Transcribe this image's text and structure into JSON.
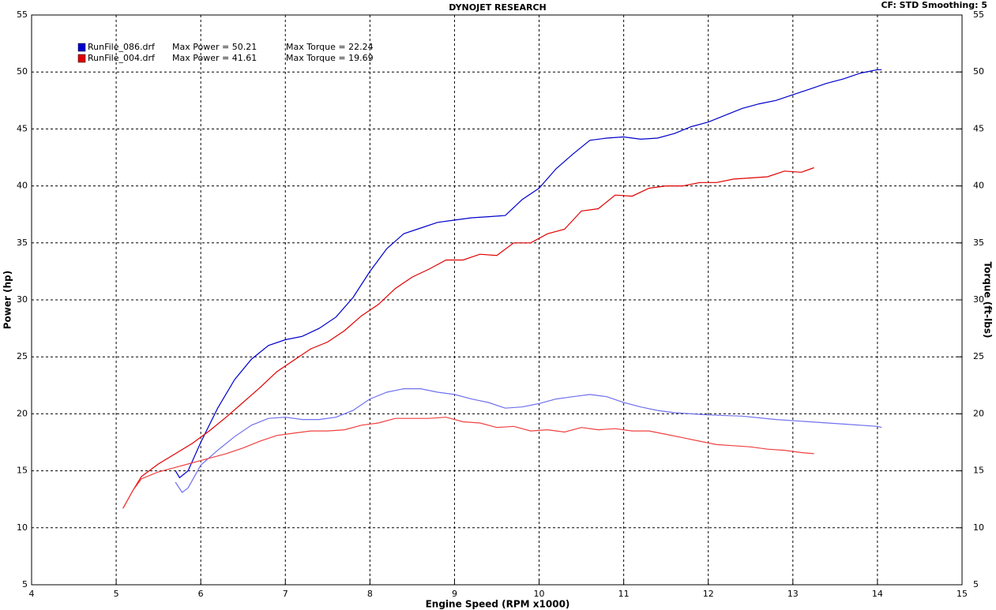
{
  "chart_data": {
    "type": "line",
    "title": "DYNOJET RESEARCH",
    "corner_note": "CF: STD  Smoothing: 5",
    "x_label": "Engine Speed (RPM x1000)",
    "y_label": "Power (hp)",
    "y2_label": "Torque (ft-lbs)",
    "xlim": [
      4,
      15
    ],
    "xticks": [
      4,
      5,
      6,
      7,
      8,
      9,
      10,
      11,
      12,
      13,
      14,
      15
    ],
    "ylim": [
      5,
      55
    ],
    "yticks": [
      5,
      10,
      15,
      20,
      25,
      30,
      35,
      40,
      45,
      50,
      55
    ],
    "y2lim": [
      5,
      55
    ],
    "y2ticks": [
      5,
      10,
      15,
      20,
      25,
      30,
      35,
      40,
      45,
      50,
      55
    ],
    "grid": true,
    "legend": [
      {
        "name": "RunFile_086.drf",
        "power_label": "Max Power = 50.21",
        "torque_label": "Max Torque = 22.24",
        "color": "#0000cc"
      },
      {
        "name": "RunFile_004.drf",
        "power_label": "Max Power = 41.61",
        "torque_label": "Max Torque = 19.69",
        "color": "#e00000"
      }
    ],
    "series": [
      {
        "color": "#0000cc",
        "axis": "y",
        "x": [
          5.7,
          5.75,
          5.85,
          6.0,
          6.2,
          6.4,
          6.6,
          6.8,
          7.0,
          7.2,
          7.4,
          7.6,
          7.8,
          8.0,
          8.2,
          8.4,
          8.6,
          8.8,
          9.0,
          9.2,
          9.4,
          9.6,
          9.8,
          10.0,
          10.2,
          10.4,
          10.6,
          10.8,
          11.0,
          11.2,
          11.4,
          11.6,
          11.8,
          12.0,
          12.2,
          12.4,
          12.6,
          12.8,
          13.0,
          13.2,
          13.4,
          13.6,
          13.8,
          14.0,
          14.05
        ],
        "values": [
          15.0,
          14.4,
          15.0,
          17.5,
          20.5,
          23.0,
          24.8,
          26.0,
          26.5,
          26.8,
          27.5,
          28.5,
          30.2,
          32.5,
          34.5,
          35.8,
          36.3,
          36.8,
          37.0,
          37.2,
          37.3,
          37.4,
          38.8,
          39.8,
          41.5,
          42.8,
          44.0,
          44.2,
          44.3,
          44.1,
          44.2,
          44.6,
          45.2,
          45.6,
          46.2,
          46.8,
          47.2,
          47.5,
          48.0,
          48.5,
          49.0,
          49.4,
          49.9,
          50.2,
          50.2
        ]
      },
      {
        "color": "#e00000",
        "axis": "y",
        "x": [
          5.08,
          5.2,
          5.3,
          5.5,
          5.7,
          5.9,
          6.1,
          6.3,
          6.5,
          6.7,
          6.9,
          7.1,
          7.3,
          7.5,
          7.7,
          7.9,
          8.1,
          8.3,
          8.5,
          8.7,
          8.9,
          9.1,
          9.3,
          9.5,
          9.7,
          9.9,
          10.1,
          10.3,
          10.5,
          10.7,
          10.9,
          11.1,
          11.3,
          11.5,
          11.7,
          11.9,
          12.1,
          12.3,
          12.5,
          12.7,
          12.9,
          13.1,
          13.25
        ],
        "values": [
          11.7,
          13.3,
          14.5,
          15.6,
          16.5,
          17.4,
          18.5,
          19.7,
          21.0,
          22.3,
          23.7,
          24.7,
          25.7,
          26.3,
          27.3,
          28.6,
          29.6,
          31.0,
          32.0,
          32.7,
          33.5,
          33.5,
          34.0,
          33.9,
          35.0,
          35.0,
          35.8,
          36.2,
          37.8,
          38.0,
          39.2,
          39.1,
          39.8,
          40.0,
          40.0,
          40.3,
          40.3,
          40.6,
          40.7,
          40.8,
          41.3,
          41.2,
          41.6
        ]
      },
      {
        "color": "#7070ee",
        "axis": "y2",
        "x": [
          5.7,
          5.78,
          5.85,
          6.0,
          6.2,
          6.4,
          6.6,
          6.8,
          7.0,
          7.2,
          7.4,
          7.6,
          7.8,
          8.0,
          8.2,
          8.4,
          8.6,
          8.8,
          9.0,
          9.2,
          9.4,
          9.6,
          9.8,
          10.0,
          10.2,
          10.4,
          10.6,
          10.8,
          11.0,
          11.2,
          11.4,
          11.6,
          11.8,
          12.0,
          12.4,
          12.8,
          13.2,
          13.6,
          14.0,
          14.05
        ],
        "values": [
          14.0,
          13.1,
          13.5,
          15.5,
          16.8,
          18.0,
          19.0,
          19.6,
          19.7,
          19.5,
          19.5,
          19.7,
          20.3,
          21.3,
          21.9,
          22.2,
          22.2,
          21.9,
          21.7,
          21.3,
          21.0,
          20.5,
          20.6,
          20.9,
          21.3,
          21.5,
          21.7,
          21.5,
          21.0,
          20.6,
          20.3,
          20.1,
          20.0,
          19.9,
          19.8,
          19.5,
          19.3,
          19.1,
          18.9,
          18.8
        ]
      },
      {
        "color": "#f04040",
        "axis": "y2",
        "x": [
          5.08,
          5.2,
          5.3,
          5.5,
          5.7,
          5.9,
          6.1,
          6.3,
          6.5,
          6.7,
          6.9,
          7.1,
          7.3,
          7.5,
          7.7,
          7.9,
          8.1,
          8.3,
          8.5,
          8.7,
          8.9,
          9.1,
          9.3,
          9.5,
          9.7,
          9.9,
          10.1,
          10.3,
          10.5,
          10.7,
          10.9,
          11.1,
          11.3,
          11.5,
          11.7,
          11.9,
          12.1,
          12.3,
          12.5,
          12.7,
          12.9,
          13.1,
          13.25
        ],
        "values": [
          11.7,
          13.3,
          14.3,
          14.9,
          15.3,
          15.7,
          16.1,
          16.5,
          17.0,
          17.6,
          18.1,
          18.3,
          18.5,
          18.5,
          18.6,
          19.0,
          19.2,
          19.6,
          19.6,
          19.6,
          19.7,
          19.3,
          19.2,
          18.8,
          18.9,
          18.5,
          18.6,
          18.4,
          18.8,
          18.6,
          18.7,
          18.5,
          18.5,
          18.2,
          17.9,
          17.6,
          17.3,
          17.2,
          17.1,
          16.9,
          16.8,
          16.6,
          16.5
        ]
      }
    ]
  }
}
